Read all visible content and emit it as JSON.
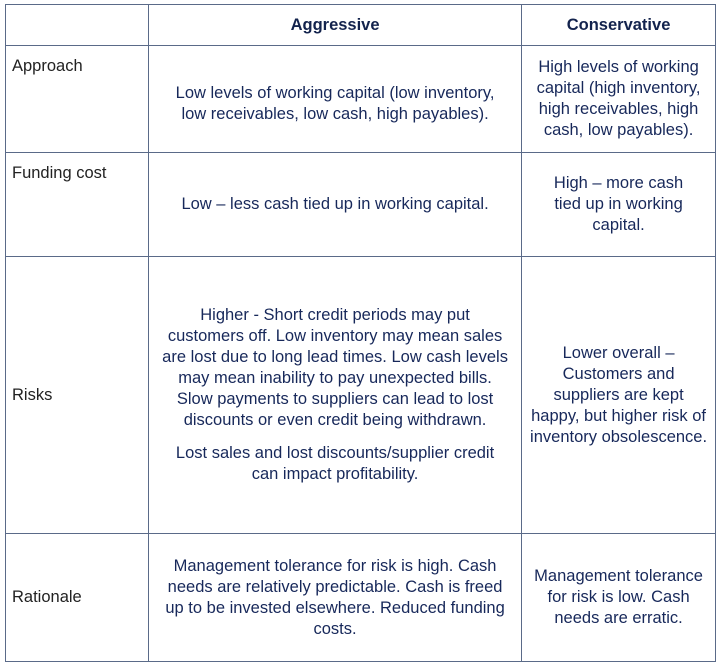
{
  "headers": {
    "blank": "",
    "aggressive": "Aggressive",
    "conservative": "Conservative"
  },
  "rows": [
    {
      "label": "Approach",
      "aggressive": [
        "Low levels of working capital (low inventory, low receivables, low cash, high payables)."
      ],
      "conservative": [
        "High levels of working capital (high inventory, high receivables, high cash, low payables)."
      ]
    },
    {
      "label": "Funding cost",
      "aggressive": [
        "Low – less cash tied up in working capital."
      ],
      "conservative": [
        "High – more cash tied up in working capital."
      ]
    },
    {
      "label": "Risks",
      "aggressive": [
        "Higher - Short credit periods may put customers off. Low inventory may mean sales are lost due to long lead times. Low cash levels may mean inability to pay unexpected bills. Slow payments to suppliers can lead to lost discounts or even credit being withdrawn.",
        "Lost sales and lost discounts/supplier credit can impact profitability."
      ],
      "conservative": [
        "Lower overall – Customers and suppliers are kept happy, but higher risk of inventory obsolescence."
      ]
    },
    {
      "label": "Rationale",
      "aggressive": [
        "Management tolerance for risk is high. Cash needs are relatively predictable. Cash is freed up to be invested elsewhere. Reduced funding costs."
      ],
      "conservative": [
        "Management tolerance for risk is low. Cash needs are erratic."
      ]
    }
  ]
}
